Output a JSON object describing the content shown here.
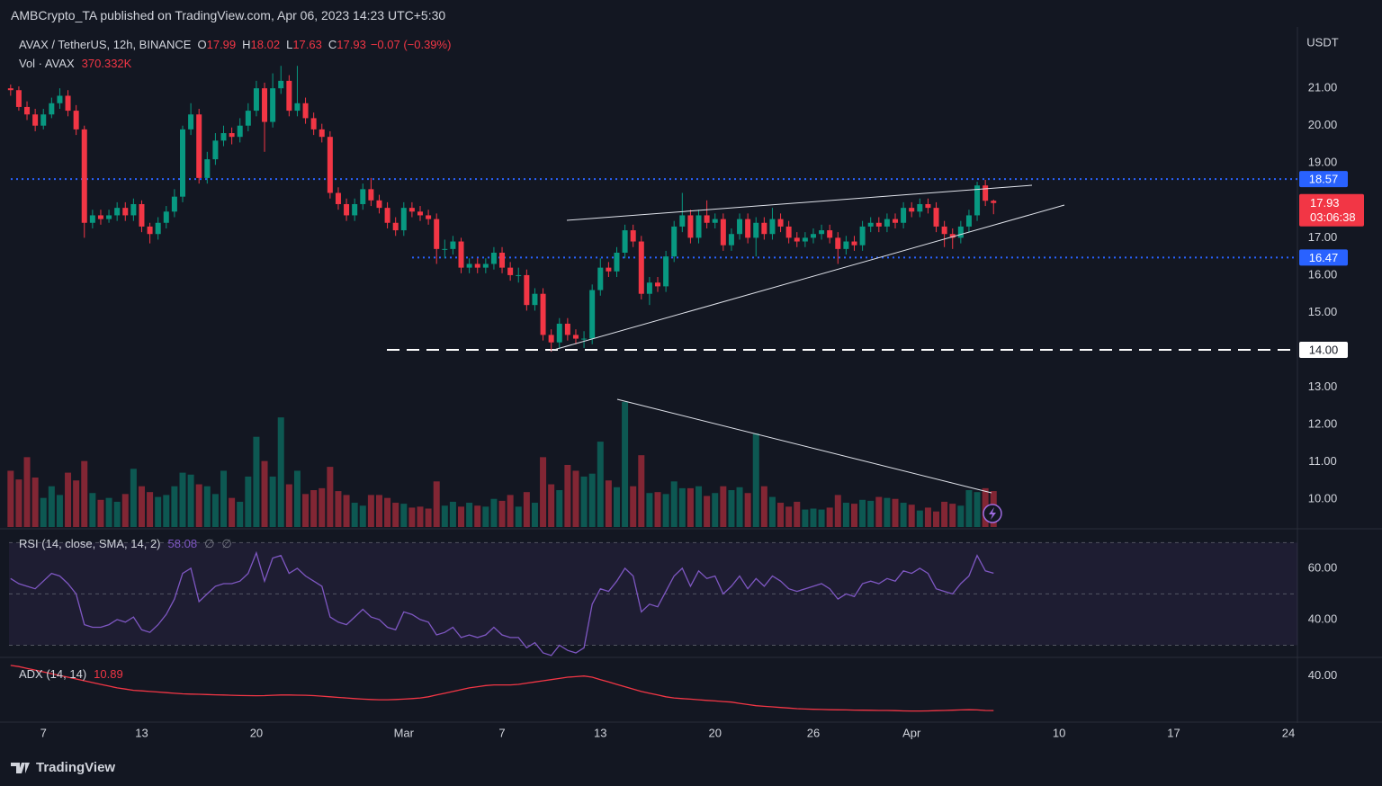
{
  "header": {
    "publisher": "AMBCrypto_TA published on TradingView.com, Apr 06, 2023 14:23 UTC+5:30"
  },
  "chart_data": {
    "type": "candlestick",
    "symbol": "AVAX / TetherUS, 12h, BINANCE",
    "ohlc_letters": [
      "O",
      "H",
      "L",
      "C"
    ],
    "change_label": "−0.07 (−0.39%)",
    "currency": "USDT",
    "colors": {
      "up": "#089981",
      "down": "#f23645"
    },
    "ohlc": [
      [
        21.0,
        21.1,
        20.8,
        20.95
      ],
      [
        20.95,
        21.05,
        20.4,
        20.5
      ],
      [
        20.5,
        20.65,
        20.15,
        20.3
      ],
      [
        20.3,
        20.45,
        19.85,
        20.0
      ],
      [
        20.0,
        20.45,
        19.9,
        20.3
      ],
      [
        20.3,
        20.75,
        20.2,
        20.6
      ],
      [
        20.6,
        21.0,
        20.45,
        20.8
      ],
      [
        20.8,
        20.95,
        20.25,
        20.4
      ],
      [
        20.4,
        20.55,
        19.75,
        19.9
      ],
      [
        19.9,
        20.0,
        17.0,
        17.4
      ],
      [
        17.4,
        17.75,
        17.25,
        17.6
      ],
      [
        17.6,
        17.75,
        17.35,
        17.5
      ],
      [
        17.5,
        17.75,
        17.4,
        17.6
      ],
      [
        17.6,
        17.95,
        17.45,
        17.8
      ],
      [
        17.8,
        17.95,
        17.45,
        17.6
      ],
      [
        17.6,
        18.05,
        17.45,
        17.9
      ],
      [
        17.9,
        18.0,
        17.15,
        17.3
      ],
      [
        17.3,
        17.4,
        16.85,
        17.1
      ],
      [
        17.1,
        17.55,
        16.95,
        17.4
      ],
      [
        17.4,
        17.85,
        17.25,
        17.7
      ],
      [
        17.7,
        18.3,
        17.55,
        18.1
      ],
      [
        18.1,
        20.0,
        17.95,
        19.9
      ],
      [
        19.9,
        20.6,
        19.75,
        20.3
      ],
      [
        20.3,
        20.45,
        18.45,
        18.6
      ],
      [
        18.6,
        19.3,
        18.45,
        19.1
      ],
      [
        19.1,
        19.8,
        18.95,
        19.6
      ],
      [
        19.6,
        20.0,
        19.45,
        19.8
      ],
      [
        19.8,
        19.95,
        19.5,
        19.7
      ],
      [
        19.7,
        20.2,
        19.55,
        20.0
      ],
      [
        20.0,
        20.6,
        19.85,
        20.4
      ],
      [
        20.4,
        21.2,
        20.25,
        21.0
      ],
      [
        21.0,
        21.15,
        19.3,
        20.1
      ],
      [
        20.1,
        21.4,
        19.95,
        21.0
      ],
      [
        21.0,
        21.6,
        20.85,
        21.2
      ],
      [
        21.2,
        21.35,
        20.25,
        20.4
      ],
      [
        20.4,
        21.6,
        20.25,
        20.6
      ],
      [
        20.6,
        20.75,
        20.05,
        20.2
      ],
      [
        20.2,
        20.35,
        19.75,
        19.9
      ],
      [
        19.9,
        20.05,
        19.55,
        19.7
      ],
      [
        19.7,
        19.85,
        18.05,
        18.2
      ],
      [
        18.2,
        18.35,
        17.75,
        17.9
      ],
      [
        17.9,
        18.05,
        17.45,
        17.6
      ],
      [
        17.6,
        18.05,
        17.45,
        17.9
      ],
      [
        17.9,
        18.45,
        17.75,
        18.3
      ],
      [
        18.3,
        18.6,
        17.85,
        18.0
      ],
      [
        18.0,
        18.15,
        17.65,
        17.8
      ],
      [
        17.8,
        17.95,
        17.25,
        17.4
      ],
      [
        17.4,
        17.55,
        17.05,
        17.2
      ],
      [
        17.2,
        17.95,
        17.05,
        17.8
      ],
      [
        17.8,
        17.95,
        17.55,
        17.7
      ],
      [
        17.7,
        17.85,
        17.45,
        17.6
      ],
      [
        17.6,
        17.75,
        17.35,
        17.5
      ],
      [
        17.5,
        17.65,
        16.3,
        16.7
      ],
      [
        16.7,
        16.95,
        16.45,
        16.7
      ],
      [
        16.7,
        17.05,
        16.55,
        16.9
      ],
      [
        16.9,
        17.0,
        16.05,
        16.2
      ],
      [
        16.2,
        16.45,
        16.05,
        16.3
      ],
      [
        16.3,
        16.45,
        16.05,
        16.2
      ],
      [
        16.2,
        16.45,
        16.05,
        16.3
      ],
      [
        16.3,
        16.75,
        16.15,
        16.6
      ],
      [
        16.6,
        16.75,
        16.05,
        16.2
      ],
      [
        16.2,
        16.35,
        15.85,
        16.0
      ],
      [
        16.0,
        16.2,
        15.8,
        16.0
      ],
      [
        16.0,
        16.15,
        15.05,
        15.2
      ],
      [
        15.2,
        15.65,
        15.05,
        15.5
      ],
      [
        15.5,
        15.65,
        14.25,
        14.4
      ],
      [
        14.4,
        14.55,
        13.95,
        14.2
      ],
      [
        14.2,
        14.85,
        14.05,
        14.7
      ],
      [
        14.7,
        14.85,
        14.25,
        14.4
      ],
      [
        14.4,
        14.55,
        14.15,
        14.3
      ],
      [
        14.3,
        14.5,
        14.05,
        14.3
      ],
      [
        14.3,
        15.75,
        14.15,
        15.6
      ],
      [
        15.6,
        16.45,
        15.45,
        16.2
      ],
      [
        16.2,
        16.35,
        15.95,
        16.1
      ],
      [
        16.1,
        16.75,
        15.95,
        16.6
      ],
      [
        16.6,
        17.35,
        16.45,
        17.2
      ],
      [
        17.2,
        17.35,
        16.75,
        16.9
      ],
      [
        16.9,
        17.05,
        15.35,
        15.5
      ],
      [
        15.5,
        15.95,
        15.2,
        15.8
      ],
      [
        15.8,
        15.95,
        15.55,
        15.7
      ],
      [
        15.7,
        16.65,
        15.55,
        16.5
      ],
      [
        16.5,
        17.45,
        16.35,
        17.3
      ],
      [
        17.3,
        18.2,
        17.15,
        17.6
      ],
      [
        17.6,
        17.75,
        16.85,
        17.0
      ],
      [
        17.0,
        17.75,
        16.85,
        17.6
      ],
      [
        17.6,
        18.0,
        17.25,
        17.4
      ],
      [
        17.4,
        17.65,
        17.25,
        17.5
      ],
      [
        17.5,
        17.65,
        16.65,
        16.8
      ],
      [
        16.8,
        17.25,
        16.65,
        17.1
      ],
      [
        17.1,
        17.65,
        16.95,
        17.5
      ],
      [
        17.5,
        17.65,
        16.85,
        17.0
      ],
      [
        17.0,
        17.55,
        16.5,
        17.4
      ],
      [
        17.4,
        17.55,
        16.95,
        17.1
      ],
      [
        17.1,
        17.8,
        16.95,
        17.5
      ],
      [
        17.5,
        17.65,
        17.15,
        17.3
      ],
      [
        17.3,
        17.45,
        16.85,
        17.0
      ],
      [
        17.0,
        17.15,
        16.75,
        16.9
      ],
      [
        16.9,
        17.15,
        16.75,
        17.0
      ],
      [
        17.0,
        17.25,
        16.85,
        17.1
      ],
      [
        17.1,
        17.35,
        16.95,
        17.2
      ],
      [
        17.2,
        17.35,
        16.85,
        17.0
      ],
      [
        17.0,
        17.15,
        16.3,
        16.7
      ],
      [
        16.7,
        17.05,
        16.55,
        16.9
      ],
      [
        16.9,
        17.05,
        16.65,
        16.8
      ],
      [
        16.8,
        17.45,
        16.65,
        17.3
      ],
      [
        17.3,
        17.55,
        17.15,
        17.4
      ],
      [
        17.4,
        17.55,
        17.15,
        17.3
      ],
      [
        17.3,
        17.65,
        17.15,
        17.5
      ],
      [
        17.5,
        17.65,
        17.25,
        17.4
      ],
      [
        17.4,
        17.95,
        17.25,
        17.8
      ],
      [
        17.8,
        17.95,
        17.55,
        17.7
      ],
      [
        17.7,
        18.05,
        17.55,
        17.9
      ],
      [
        17.9,
        18.05,
        17.65,
        17.8
      ],
      [
        17.8,
        17.95,
        17.15,
        17.3
      ],
      [
        17.3,
        17.45,
        16.75,
        17.1
      ],
      [
        17.1,
        17.25,
        16.7,
        17.0
      ],
      [
        17.0,
        17.45,
        16.85,
        17.3
      ],
      [
        17.3,
        17.75,
        17.15,
        17.6
      ],
      [
        17.6,
        18.5,
        17.45,
        18.4
      ],
      [
        18.4,
        18.55,
        17.85,
        17.99
      ],
      [
        17.99,
        18.02,
        17.63,
        17.93
      ]
    ],
    "ylim": [
      9.26,
      22.52
    ],
    "yticks": [
      {
        "value": 21,
        "label": "21.00"
      },
      {
        "value": 20,
        "label": "20.00"
      },
      {
        "value": 19,
        "label": "19.00"
      },
      {
        "value": 17,
        "label": "17.00"
      },
      {
        "value": 16,
        "label": "16.00"
      },
      {
        "value": 15,
        "label": "15.00"
      },
      {
        "value": 13,
        "label": "13.00"
      },
      {
        "value": 12,
        "label": "12.00"
      },
      {
        "value": 11,
        "label": "11.00"
      },
      {
        "value": 10,
        "label": "10.00"
      }
    ],
    "xlim": [
      -0.2,
      157.1
    ],
    "xticks": [
      {
        "value": 4,
        "label": "7"
      },
      {
        "value": 16,
        "label": "13"
      },
      {
        "value": 30,
        "label": "20"
      },
      {
        "value": 48,
        "label": "Mar"
      },
      {
        "value": 60,
        "label": "7"
      },
      {
        "value": 72,
        "label": "13"
      },
      {
        "value": 86,
        "label": "20"
      },
      {
        "value": 98,
        "label": "26"
      },
      {
        "value": 110,
        "label": "Apr"
      },
      {
        "value": 128,
        "label": "10"
      },
      {
        "value": 142,
        "label": "17"
      },
      {
        "value": 156,
        "label": "24"
      }
    ],
    "levels": [
      {
        "value": 18.57,
        "color": "#2962ff",
        "style": "dotted"
      },
      {
        "value": 16.47,
        "color": "#2962ff",
        "style": "dotted"
      },
      {
        "value": 14,
        "label": "14.00",
        "color": "#ffffff",
        "style": "dashed"
      }
    ],
    "countdown": "03:06:38",
    "volume_name": "Vol · AVAX",
    "volume": [
      580,
      490,
      720,
      510,
      300,
      420,
      330,
      560,
      480,
      680,
      350,
      280,
      300,
      260,
      340,
      600,
      420,
      360,
      310,
      330,
      420,
      560,
      540,
      440,
      420,
      340,
      580,
      300,
      260,
      520,
      930,
      680,
      520,
      1130,
      440,
      580,
      340,
      380,
      400,
      620,
      370,
      330,
      250,
      220,
      330,
      330,
      300,
      250,
      240,
      200,
      210,
      190,
      470,
      220,
      260,
      210,
      250,
      220,
      210,
      290,
      270,
      330,
      210,
      360,
      250,
      720,
      440,
      380,
      640,
      580,
      520,
      550,
      880,
      480,
      410,
      1290,
      420,
      740,
      350,
      360,
      340,
      470,
      400,
      400,
      420,
      320,
      350,
      420,
      380,
      410,
      350,
      965,
      420,
      310,
      250,
      210,
      260,
      180,
      190,
      180,
      200,
      330,
      250,
      240,
      280,
      270,
      310,
      300,
      290,
      250,
      230,
      170,
      200,
      160,
      260,
      240,
      220,
      380,
      360,
      400,
      370.332
    ],
    "volume_value_label": "370.332K",
    "vol_ylim": [
      0,
      1400
    ],
    "rsi_name": "RSI (14, close, SMA, 14, 2)",
    "rsi": [
      56,
      54,
      53,
      52,
      55,
      58,
      57,
      54,
      50,
      38,
      37,
      37,
      38,
      40,
      39,
      41,
      36,
      35,
      38,
      42,
      48,
      58,
      60,
      47,
      50,
      53,
      54,
      54,
      55,
      58,
      66,
      55,
      64,
      65,
      58,
      60,
      57,
      55,
      53,
      41,
      39,
      38,
      41,
      44,
      41,
      40,
      37,
      36,
      43,
      42,
      40,
      39,
      34,
      35,
      37,
      33,
      34,
      33,
      34,
      37,
      34,
      33,
      33,
      29,
      31,
      27,
      26,
      30,
      28,
      27,
      29,
      46,
      52,
      51,
      55,
      60,
      57,
      43,
      46,
      45,
      51,
      57,
      60,
      53,
      59,
      56,
      57,
      50,
      53,
      57,
      52,
      56,
      53,
      57,
      55,
      52,
      51,
      52,
      53,
      54,
      52,
      48,
      50,
      49,
      54,
      55,
      54,
      56,
      55,
      59,
      58,
      60,
      58,
      52,
      51,
      50,
      54,
      57,
      65,
      59,
      58.08
    ],
    "rsi_extra": [
      "∅",
      "∅"
    ],
    "rsi_ylim": [
      25.6,
      74.0
    ],
    "rsi_yticks": [
      {
        "value": 60,
        "label": "60.00"
      },
      {
        "value": 40,
        "label": "40.00"
      }
    ],
    "rsi_bands": [
      30,
      50,
      70
    ],
    "rsi_color": "#7e57c2",
    "adx_name": "ADX (14, 14)",
    "adx": [
      49,
      48,
      46.5,
      45,
      43.5,
      42,
      40.5,
      39,
      37.5,
      36,
      34.5,
      33,
      31.5,
      30,
      29,
      28,
      27.5,
      27,
      26.5,
      26,
      25.5,
      25,
      24.8,
      24.6,
      24.4,
      24.2,
      24,
      23.8,
      23.6,
      23.5,
      23.4,
      23.5,
      23.8,
      24,
      24,
      23.9,
      23.8,
      23.5,
      23,
      22.5,
      22,
      21.5,
      21,
      20.5,
      20.2,
      20,
      20,
      20.2,
      20.5,
      21,
      21.5,
      22.5,
      24,
      25.5,
      27,
      28.5,
      30,
      31,
      32,
      32.5,
      32.5,
      32.5,
      33,
      34,
      35,
      36,
      37,
      38,
      39,
      39.5,
      40,
      39,
      37,
      35,
      33,
      31,
      29,
      27,
      25.5,
      24,
      22.5,
      21.5,
      21,
      20.5,
      20,
      19.5,
      19,
      18.5,
      18,
      17,
      16,
      15,
      14.5,
      14,
      13.5,
      13,
      12.5,
      12.2,
      12,
      11.8,
      11.6,
      11.5,
      11.4,
      11.3,
      11.2,
      11.1,
      11,
      11,
      10.8,
      10.6,
      10.5,
      10.5,
      10.6,
      10.8,
      11,
      11.2,
      11.4,
      11.6,
      11.4,
      11.0,
      10.89
    ],
    "adx_ylim": [
      3.4,
      54.2
    ],
    "adx_yticks": [
      {
        "value": 40,
        "label": "40.00"
      }
    ],
    "adx_color": "#f23645"
  },
  "footer": {
    "brand": "TradingView"
  }
}
